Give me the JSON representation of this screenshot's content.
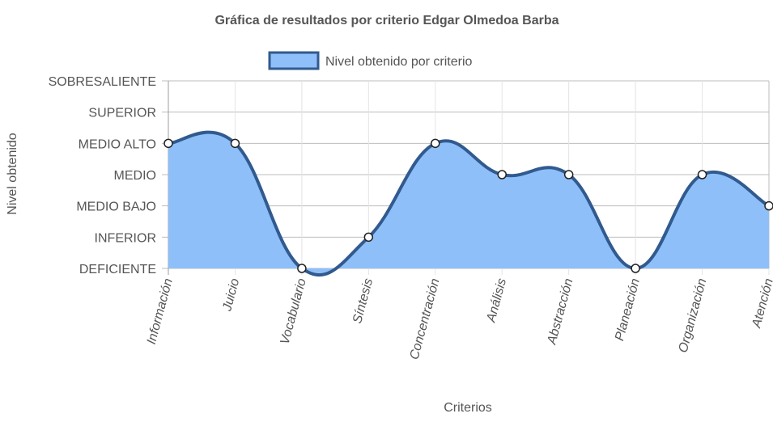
{
  "chart_data": {
    "type": "area",
    "title": "Gráfica de resultados por criterio Edgar Olmedoa Barba",
    "xlabel": "Criterios",
    "ylabel": "Nivel obtenido",
    "legend_position": "top",
    "y_levels": [
      "DEFICIENTE",
      "INFERIOR",
      "MEDIO BAJO",
      "MEDIO",
      "MEDIO ALTO",
      "SUPERIOR",
      "SOBRESALIENTE"
    ],
    "categories": [
      "Información",
      "Juicio",
      "Vocabulario",
      "Síntesis",
      "Concentración",
      "Análisis",
      "Abstracción",
      "Planeación",
      "Organización",
      "Atención"
    ],
    "series": [
      {
        "name": "Nivel obtenido por criterio",
        "values": [
          "MEDIO ALTO",
          "MEDIO ALTO",
          "DEFICIENTE",
          "INFERIOR",
          "MEDIO ALTO",
          "MEDIO",
          "MEDIO",
          "DEFICIENTE",
          "MEDIO",
          "MEDIO BAJO"
        ],
        "fill_color": "#8fbff9",
        "line_color": "#315a8e"
      }
    ],
    "grid": true
  }
}
